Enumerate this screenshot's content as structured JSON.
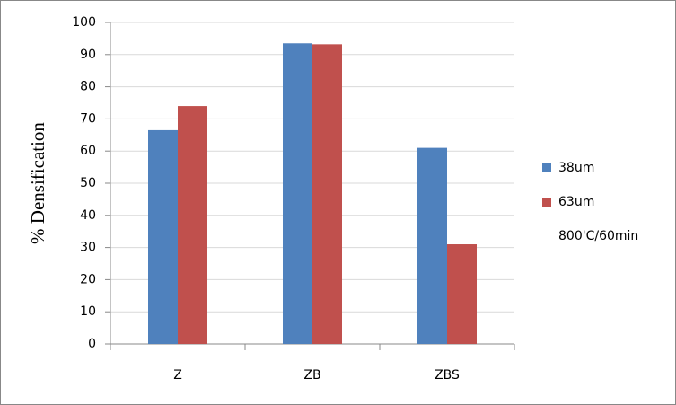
{
  "chart_data": {
    "type": "bar",
    "y_label": "% Densification",
    "categories": [
      "Z",
      "ZB",
      "ZBS"
    ],
    "series": [
      {
        "name": "38um",
        "color": "#4f81bd",
        "values": [
          66.5,
          93.5,
          61
        ]
      },
      {
        "name": "63um",
        "color": "#c0504d",
        "values": [
          74,
          93.2,
          31
        ]
      }
    ],
    "annotation": "800'C/60min",
    "ylim": [
      0,
      100
    ],
    "yticks": [
      0,
      10,
      20,
      30,
      40,
      50,
      60,
      70,
      80,
      90,
      100
    ],
    "grid": true,
    "legend_position": "right"
  }
}
